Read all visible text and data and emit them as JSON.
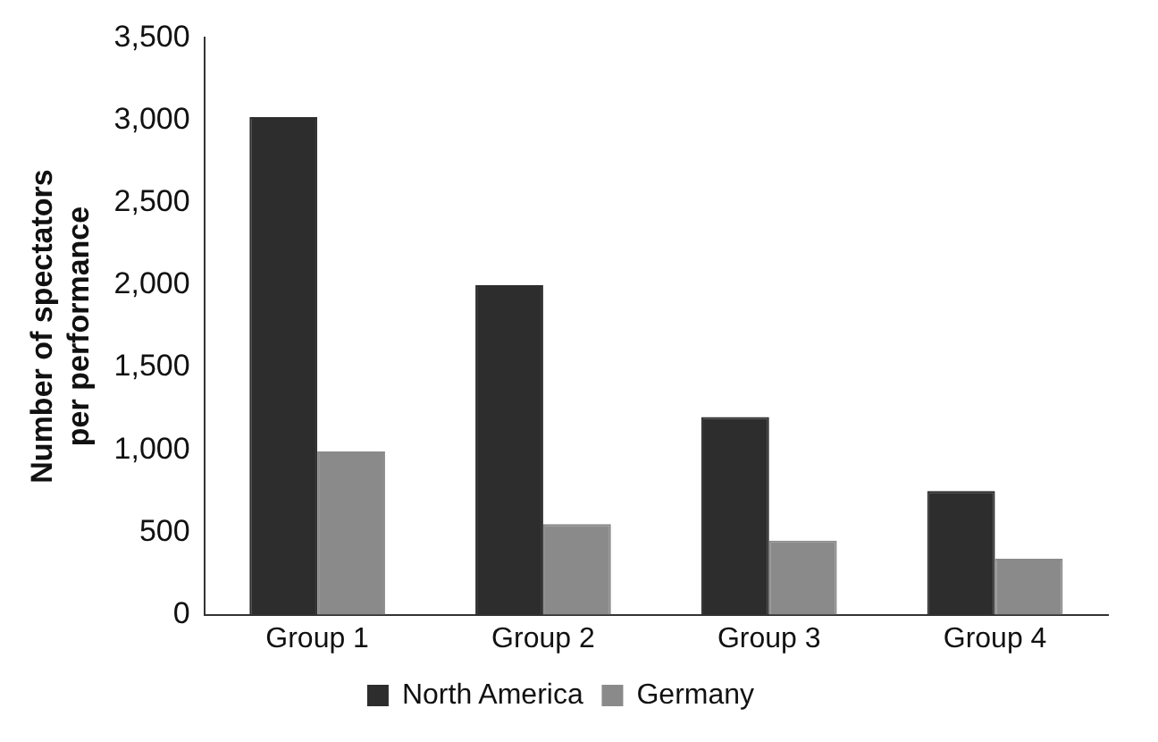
{
  "chart_data": {
    "type": "bar",
    "ylabel": "Number of spectators\nper performance",
    "categories": [
      "Group 1",
      "Group 2",
      "Group 3",
      "Group 4"
    ],
    "series": [
      {
        "name": "North America",
        "color": "#2d2d2d",
        "values": [
          3020,
          2000,
          1200,
          750
        ]
      },
      {
        "name": "Germany",
        "color": "#8a8a8a",
        "values": [
          990,
          550,
          450,
          340
        ]
      }
    ],
    "ylim": [
      0,
      3500
    ],
    "yticks": [
      0,
      500,
      {
        "value": 1000,
        "label": "1,000"
      },
      {
        "value": 1500,
        "label": "1,500"
      },
      {
        "value": 2000,
        "label": "2,000"
      },
      {
        "value": 2500,
        "label": "2,500"
      },
      {
        "value": 3000,
        "label": "3,000"
      },
      {
        "value": 3500,
        "label": "3,500"
      }
    ],
    "grid": false,
    "legend": "bottom"
  }
}
